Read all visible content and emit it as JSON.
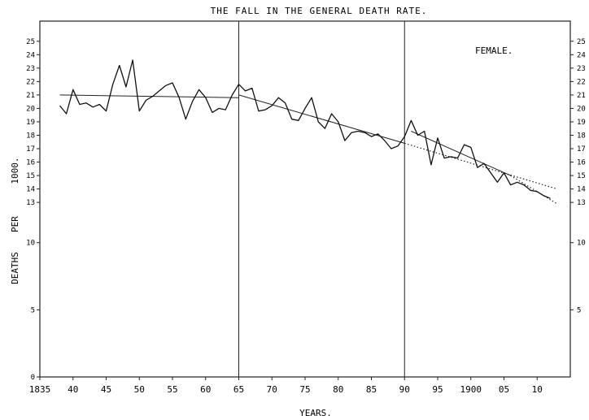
{
  "chart_data": {
    "type": "line",
    "title": "THE FALL IN THE GENERAL DEATH RATE.",
    "annotation": "FEMALE.",
    "xlabel": "YEARS.",
    "ylabel_parts": [
      "DEATHS",
      "PER",
      "1000."
    ],
    "xlim": [
      1835,
      1915
    ],
    "ylim": [
      0,
      26.5
    ],
    "x_ticks": [
      {
        "x": 1835,
        "label": "1835"
      },
      {
        "x": 1840,
        "label": "40"
      },
      {
        "x": 1845,
        "label": "45"
      },
      {
        "x": 1850,
        "label": "50"
      },
      {
        "x": 1855,
        "label": "55"
      },
      {
        "x": 1860,
        "label": "60"
      },
      {
        "x": 1865,
        "label": "65"
      },
      {
        "x": 1870,
        "label": "70"
      },
      {
        "x": 1875,
        "label": "75"
      },
      {
        "x": 1880,
        "label": "80"
      },
      {
        "x": 1885,
        "label": "85"
      },
      {
        "x": 1890,
        "label": "90"
      },
      {
        "x": 1895,
        "label": "95"
      },
      {
        "x": 1900,
        "label": "1900"
      },
      {
        "x": 1905,
        "label": "05"
      },
      {
        "x": 1910,
        "label": "10"
      }
    ],
    "y_ticks_left": [
      {
        "y": 0,
        "label": "0"
      },
      {
        "y": 5,
        "label": "5"
      },
      {
        "y": 10,
        "label": "10"
      },
      {
        "y": 13,
        "label": "13"
      },
      {
        "y": 14,
        "label": "14"
      },
      {
        "y": 15,
        "label": "15"
      },
      {
        "y": 16,
        "label": "16"
      },
      {
        "y": 17,
        "label": "17"
      },
      {
        "y": 18,
        "label": "18"
      },
      {
        "y": 19,
        "label": "19"
      },
      {
        "y": 20,
        "label": "20"
      },
      {
        "y": 21,
        "label": "21"
      },
      {
        "y": 22,
        "label": "22"
      },
      {
        "y": 23,
        "label": "23"
      },
      {
        "y": 24,
        "label": "24"
      },
      {
        "y": 25,
        "label": "25"
      }
    ],
    "y_ticks_right": [
      {
        "y": 5,
        "label": "5"
      },
      {
        "y": 10,
        "label": "10"
      },
      {
        "y": 13,
        "label": "13"
      },
      {
        "y": 14,
        "label": "14"
      },
      {
        "y": 15,
        "label": "15"
      },
      {
        "y": 16,
        "label": "16"
      },
      {
        "y": 17,
        "label": "17"
      },
      {
        "y": 18,
        "label": "18"
      },
      {
        "y": 19,
        "label": "19"
      },
      {
        "y": 20,
        "label": "20"
      },
      {
        "y": 21,
        "label": "21"
      },
      {
        "y": 22,
        "label": "22"
      },
      {
        "y": 23,
        "label": "23"
      },
      {
        "y": 24,
        "label": "24"
      },
      {
        "y": 25,
        "label": "25"
      }
    ],
    "period_dividers": [
      1865,
      1890
    ],
    "grid": false,
    "series": [
      {
        "style": "observed",
        "x": [
          1838,
          1839,
          1840,
          1841,
          1842,
          1843,
          1844,
          1845,
          1846,
          1847,
          1848,
          1849,
          1850,
          1851,
          1852,
          1853,
          1854,
          1855,
          1856,
          1857,
          1858,
          1859,
          1860,
          1861,
          1862,
          1863,
          1864,
          1865,
          1866,
          1867,
          1868,
          1869,
          1870,
          1871,
          1872,
          1873,
          1874,
          1875,
          1876,
          1877,
          1878,
          1879,
          1880,
          1881,
          1882,
          1883,
          1884,
          1885,
          1886,
          1887,
          1888,
          1889,
          1890,
          1891,
          1892,
          1893,
          1894,
          1895,
          1896,
          1897,
          1898,
          1899,
          1900,
          1901,
          1902,
          1903,
          1904,
          1905,
          1906,
          1907,
          1908,
          1909,
          1910,
          1911,
          1912
        ],
        "values": [
          20.2,
          19.6,
          21.4,
          20.3,
          20.4,
          20.1,
          20.3,
          19.8,
          21.8,
          23.2,
          21.6,
          23.6,
          19.8,
          20.6,
          20.9,
          21.3,
          21.7,
          21.9,
          20.8,
          19.2,
          20.5,
          21.4,
          20.8,
          19.7,
          20.0,
          19.9,
          21.0,
          21.8,
          21.3,
          21.5,
          19.8,
          19.9,
          20.2,
          20.8,
          20.4,
          19.2,
          19.1,
          20.0,
          20.8,
          19.0,
          18.5,
          19.6,
          19.0,
          17.6,
          18.2,
          18.3,
          18.2,
          17.9,
          18.1,
          17.6,
          17.0,
          17.2,
          17.9,
          19.1,
          18.0,
          18.3,
          15.8,
          17.8,
          16.3,
          16.4,
          16.3,
          17.3,
          17.1,
          15.6,
          15.9,
          15.2,
          14.5,
          15.2,
          14.3,
          14.5,
          14.3,
          13.9,
          13.8,
          13.5,
          13.3
        ]
      },
      {
        "style": "trend",
        "x": [
          1838,
          1865
        ],
        "values": [
          21.0,
          20.8
        ]
      },
      {
        "style": "trend",
        "x": [
          1865,
          1890
        ],
        "values": [
          21.0,
          17.4
        ]
      },
      {
        "style": "trend-dotted",
        "x": [
          1890,
          1913
        ],
        "values": [
          17.4,
          14.0
        ]
      },
      {
        "style": "trend",
        "x": [
          1891,
          1906
        ],
        "values": [
          18.3,
          15.0
        ]
      },
      {
        "style": "trend-dotted",
        "x": [
          1906,
          1913
        ],
        "values": [
          15.0,
          12.9
        ]
      }
    ]
  }
}
